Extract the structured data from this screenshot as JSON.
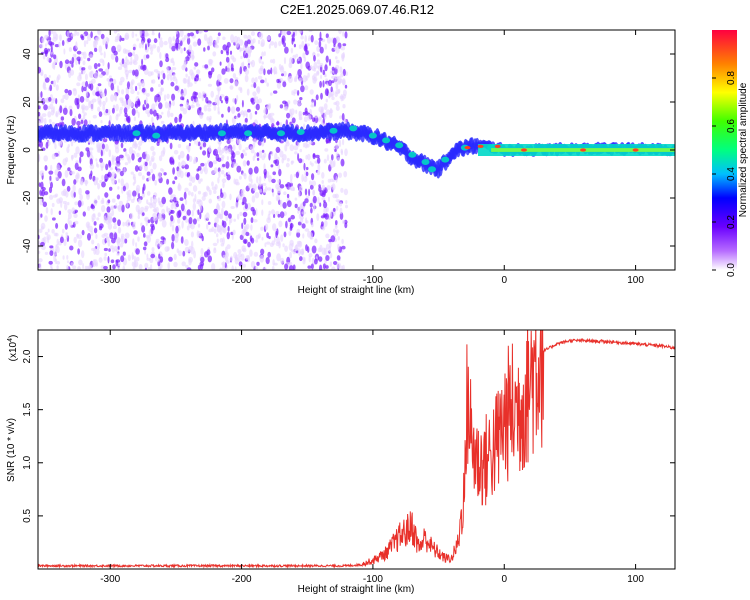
{
  "title": "C2E1.2025.069.07.46.R12",
  "colors": {
    "spec_low": "#e6d3ff",
    "spec_mid": "#7a1fff",
    "spec_band": "#2a2aff",
    "snr_line": "#e8302a",
    "axis": "#000000"
  },
  "chart_data": [
    {
      "type": "heatmap",
      "xlabel": "Height of straight line (km)",
      "ylabel": "Frequency (Hz)",
      "xlim": [
        -355,
        130
      ],
      "ylim": [
        -50,
        50
      ],
      "x_ticks": [
        -300,
        -200,
        -100,
        0,
        100
      ],
      "y_ticks": [
        -40,
        -20,
        0,
        20,
        40
      ],
      "ridge": {
        "x": [
          -355,
          -300,
          -250,
          -200,
          -150,
          -120,
          -100,
          -80,
          -70,
          -60,
          -50,
          -45,
          -40,
          -30,
          -20,
          -10,
          0,
          20,
          50,
          80,
          100,
          130
        ],
        "y": [
          7,
          7,
          7,
          7.5,
          7,
          8,
          6,
          1,
          -3,
          -6,
          -8,
          -5,
          -1,
          1,
          2,
          1.5,
          0,
          0,
          0.5,
          0.5,
          0.5,
          0
        ]
      },
      "colorbar": {
        "label": "Normalized spectral amplitude",
        "range": [
          0,
          1
        ],
        "ticks": [
          "0.0",
          "0.2",
          "0.4",
          "0.6",
          "0.8"
        ],
        "tick_values": [
          0,
          0.2,
          0.4,
          0.6,
          0.8
        ]
      }
    },
    {
      "type": "line",
      "xlabel": "Height of straight line (km)",
      "ylabel": "SNR (10 * v/v)",
      "multiplier": "(x10",
      "multiplier_exp": "4",
      "multiplier_close": ")",
      "xlim": [
        -355,
        130
      ],
      "ylim": [
        0,
        2.25
      ],
      "x_ticks": [
        -300,
        -200,
        -100,
        0,
        100
      ],
      "y_ticks": [
        "0.5",
        "1.0",
        "1.5",
        "2.0"
      ],
      "y_tick_values": [
        0.5,
        1.0,
        1.5,
        2.0
      ],
      "series": [
        {
          "x": [
            -355,
            -300,
            -250,
            -200,
            -150,
            -120,
            -110,
            -100,
            -90,
            -80,
            -75,
            -70,
            -65,
            -60,
            -55,
            -50,
            -45,
            -40,
            -35,
            -30,
            -28,
            -25,
            -20,
            -15,
            -10,
            -5,
            0,
            5,
            10,
            15,
            20,
            25,
            30,
            40,
            50,
            60,
            80,
            100,
            120,
            130
          ],
          "y": [
            0.03,
            0.03,
            0.03,
            0.03,
            0.03,
            0.03,
            0.04,
            0.08,
            0.15,
            0.3,
            0.35,
            0.4,
            0.2,
            0.3,
            0.2,
            0.15,
            0.1,
            0.1,
            0.25,
            0.8,
            1.7,
            1.2,
            1.0,
            1.0,
            1.1,
            1.2,
            1.4,
            1.5,
            1.5,
            1.6,
            1.8,
            1.95,
            2.05,
            2.12,
            2.15,
            2.15,
            2.14,
            2.12,
            2.1,
            2.08
          ]
        }
      ]
    }
  ]
}
